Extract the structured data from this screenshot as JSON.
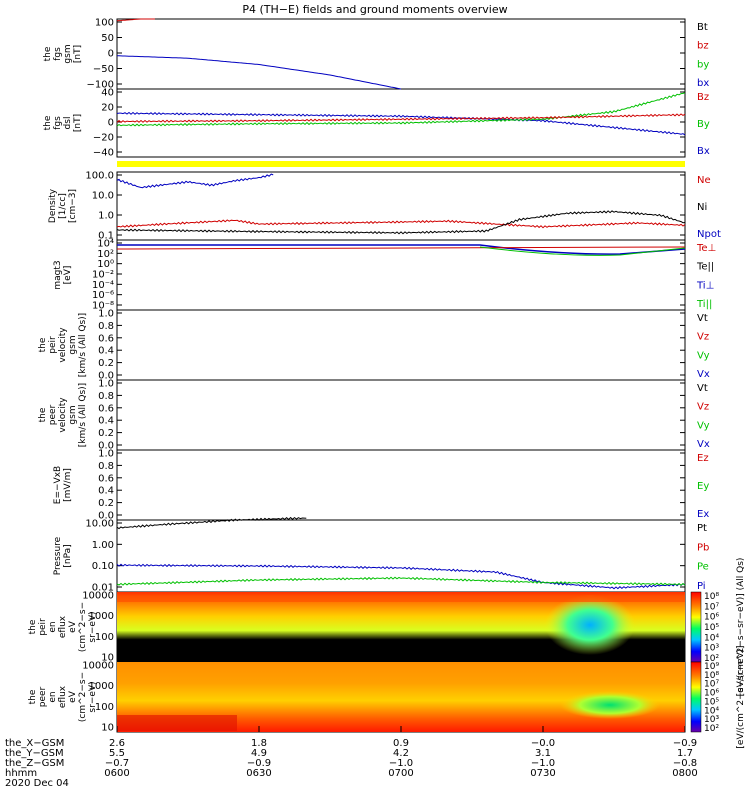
{
  "title": "P4 (TH−E) fields and ground moments overview",
  "panels": [
    {
      "id": "fgs_gsm",
      "ylabel": [
        "the",
        "fgs",
        "gsm",
        "[nT]"
      ],
      "ylim": [
        -100,
        100
      ],
      "scale": "linear",
      "ticks": [
        "100",
        "50",
        "0",
        "−50",
        "−100"
      ],
      "legend": [
        {
          "label": "Bt",
          "color": "#000000"
        },
        {
          "label": "bz",
          "color": "#d00000"
        },
        {
          "label": "by",
          "color": "#00c000"
        },
        {
          "label": "bx",
          "color": "#0000c0"
        }
      ]
    },
    {
      "id": "fgs_dsl",
      "ylabel": [
        "the",
        "fgs",
        "dsl",
        "[nT]"
      ],
      "ylim": [
        -50,
        40
      ],
      "scale": "linear",
      "ticks": [
        "40",
        "20",
        "0",
        "−20",
        "−40"
      ],
      "legend": [
        {
          "label": "Bz",
          "color": "#d00000"
        },
        {
          "label": "By",
          "color": "#00c000"
        },
        {
          "label": "Bx",
          "color": "#0000c0"
        }
      ]
    },
    {
      "id": "density",
      "ylabel": [
        "Density",
        "[1/cc]",
        "[cm−3]"
      ],
      "ylim": [
        0.05,
        200
      ],
      "scale": "log",
      "ticks": [
        "100.0",
        "10.0",
        "1.0",
        "0.1"
      ],
      "legend": [
        {
          "label": "Ne",
          "color": "#d00000"
        },
        {
          "label": "Ni",
          "color": "#000000"
        },
        {
          "label": "Npot",
          "color": "#0000c0"
        }
      ]
    },
    {
      "id": "temp",
      "ylabel": [
        "magt3",
        "[eV]"
      ],
      "scale": "log",
      "ticks": [
        "10⁴",
        "10²",
        "10⁰",
        "10⁻²",
        "10⁻⁴",
        "10⁻⁶",
        "10⁻⁸"
      ],
      "legend": [
        {
          "label": "Te⊥",
          "color": "#d00000"
        },
        {
          "label": "Te||",
          "color": "#000000"
        },
        {
          "label": "Ti⊥",
          "color": "#0000c0"
        },
        {
          "label": "Ti||",
          "color": "#00c000"
        }
      ]
    },
    {
      "id": "peir_vel",
      "ylabel": [
        "the",
        "peir",
        "velocity",
        "gsm",
        "[km/s (All Qs)]"
      ],
      "ylim": [
        0,
        1
      ],
      "scale": "linear",
      "ticks": [
        "1.0",
        "0.8",
        "0.6",
        "0.4",
        "0.2",
        "0.0"
      ],
      "legend": [
        {
          "label": "Vt",
          "color": "#000000"
        },
        {
          "label": "Vz",
          "color": "#d00000"
        },
        {
          "label": "Vy",
          "color": "#00c000"
        },
        {
          "label": "Vx",
          "color": "#0000c0"
        }
      ]
    },
    {
      "id": "peer_vel",
      "ylabel": [
        "the",
        "peer",
        "velocity",
        "gsm",
        "[km/s (All Qs)]"
      ],
      "ylim": [
        0,
        1
      ],
      "scale": "linear",
      "ticks": [
        "1.0",
        "0.8",
        "0.6",
        "0.4",
        "0.2",
        "0.0"
      ],
      "legend": [
        {
          "label": "Vt",
          "color": "#000000"
        },
        {
          "label": "Vz",
          "color": "#d00000"
        },
        {
          "label": "Vy",
          "color": "#00c000"
        },
        {
          "label": "Vx",
          "color": "#0000c0"
        }
      ]
    },
    {
      "id": "efield",
      "ylabel": [
        "E=−VxB",
        "[mV/m]"
      ],
      "ylim": [
        0,
        1
      ],
      "scale": "linear",
      "ticks": [
        "1.0",
        "0.8",
        "0.6",
        "0.4",
        "0.2",
        "0.0"
      ],
      "legend": [
        {
          "label": "Ez",
          "color": "#d00000"
        },
        {
          "label": "Ey",
          "color": "#00c000"
        },
        {
          "label": "Ex",
          "color": "#0000c0"
        }
      ]
    },
    {
      "id": "pressure",
      "ylabel": [
        "Pressure",
        "[nPa]"
      ],
      "ylim": [
        0.005,
        20
      ],
      "scale": "log",
      "ticks": [
        "10.00",
        "1.00",
        "0.10",
        "0.01"
      ],
      "legend": [
        {
          "label": "Pt",
          "color": "#000000"
        },
        {
          "label": "Pb",
          "color": "#d00000"
        },
        {
          "label": "Pe",
          "color": "#00c000"
        },
        {
          "label": "Pi",
          "color": "#0000c0"
        }
      ]
    },
    {
      "id": "peir_eflux",
      "ylabel": [
        "the",
        "peir",
        "en",
        "eflux",
        "eV",
        "(cm^2−s−",
        "sr−eV)"
      ],
      "ylim": [
        6,
        25000
      ],
      "scale": "log",
      "ticks": [
        "10000",
        "1000",
        "100",
        "10"
      ],
      "colorbar_ticks": [
        "10⁸",
        "10⁷",
        "10⁶",
        "10⁵",
        "10⁴",
        "10³",
        "10²"
      ],
      "colorbar_label": "[eV/(cm^2−s−sr−eV)] (All Qs)"
    },
    {
      "id": "peer_eflux",
      "ylabel": [
        "the",
        "peer",
        "en",
        "eflux",
        "eV",
        "(cm^2−s−",
        "sr−eV)"
      ],
      "ylim": [
        6,
        25000
      ],
      "scale": "log",
      "ticks": [
        "10000",
        "1000",
        "100",
        "10"
      ],
      "colorbar_ticks": [
        "10⁹",
        "10⁸",
        "10⁷",
        "10⁶",
        "10⁵",
        "10⁴",
        "10³",
        "10²"
      ],
      "colorbar_label": "[eV/(cm^2−s−sr−eV)]"
    }
  ],
  "xaxis": {
    "rows": [
      {
        "label": "the_X−GSM",
        "values": [
          "2.6",
          "1.8",
          "0.9",
          "−0.0",
          "−0.9"
        ]
      },
      {
        "label": "the_Y−GSM",
        "values": [
          "5.5",
          "4.9",
          "4.2",
          "3.1",
          "1.7"
        ]
      },
      {
        "label": "the_Z−GSM",
        "values": [
          "−0.7",
          "−0.9",
          "−1.0",
          "−1.0",
          "−0.8"
        ]
      },
      {
        "label": "hhmm",
        "values": [
          "0600",
          "0630",
          "0700",
          "0730",
          "0800"
        ]
      }
    ],
    "date": "2020 Dec 04"
  },
  "chart_data": {
    "type": "line",
    "title": "P4 (TH−E) fields and ground moments overview",
    "x_time_range": [
      "0600",
      "0800"
    ],
    "x_ticks": [
      "0600",
      "0630",
      "0700",
      "0730",
      "0800"
    ],
    "series": [
      {
        "panel": "fgs_gsm",
        "name": "bx",
        "x": [
          "0600",
          "0615",
          "0630",
          "0645",
          "0700"
        ],
        "y": [
          -5,
          -12,
          -30,
          -60,
          -100
        ]
      },
      {
        "panel": "fgs_gsm",
        "name": "bz",
        "x": [
          "0600",
          "0605",
          "0608"
        ],
        "y": [
          95,
          100,
          100
        ]
      },
      {
        "panel": "fgs_dsl",
        "name": "Bx",
        "x": [
          "0600",
          "0630",
          "0700",
          "0730",
          "0800"
        ],
        "y": [
          8,
          6,
          4,
          -2,
          -20
        ]
      },
      {
        "panel": "fgs_dsl",
        "name": "By",
        "x": [
          "0600",
          "0630",
          "0700",
          "0730",
          "0745",
          "0800"
        ],
        "y": [
          -8,
          -6,
          -5,
          0,
          10,
          35
        ]
      },
      {
        "panel": "fgs_dsl",
        "name": "Bz",
        "x": [
          "0600",
          "0630",
          "0700",
          "0730",
          "0800"
        ],
        "y": [
          -3,
          -2,
          0,
          2,
          6
        ]
      },
      {
        "panel": "density",
        "name": "Npot",
        "x": [
          "0600",
          "0605",
          "0615",
          "0620",
          "0625",
          "0630",
          "0633"
        ],
        "y": [
          80,
          30,
          60,
          40,
          70,
          100,
          150
        ]
      },
      {
        "panel": "density",
        "name": "Ne",
        "x": [
          "0600",
          "0610",
          "0625",
          "0630",
          "0700",
          "0710",
          "0720",
          "0730",
          "0750",
          "0800"
        ],
        "y": [
          0.25,
          0.35,
          0.55,
          0.35,
          0.45,
          0.5,
          0.35,
          0.25,
          0.4,
          0.3
        ]
      },
      {
        "panel": "density",
        "name": "Ni",
        "x": [
          "0600",
          "0630",
          "0700",
          "0718",
          "0725",
          "0735",
          "0745",
          "0755",
          "0800"
        ],
        "y": [
          0.17,
          0.14,
          0.12,
          0.15,
          0.6,
          1.3,
          1.6,
          1.0,
          0.4
        ]
      },
      {
        "panel": "pressure",
        "name": "Pt",
        "x": [
          "0600",
          "0610",
          "0625",
          "0640"
        ],
        "y": [
          8,
          12,
          20,
          25
        ]
      },
      {
        "panel": "pressure",
        "name": "Pi",
        "x": [
          "0600",
          "0630",
          "0700",
          "0720",
          "0730",
          "0745",
          "0800"
        ],
        "y": [
          0.11,
          0.1,
          0.08,
          0.05,
          0.015,
          0.008,
          0.012
        ]
      },
      {
        "panel": "pressure",
        "name": "Pe",
        "x": [
          "0600",
          "0630",
          "0700",
          "0730",
          "0800"
        ],
        "y": [
          0.012,
          0.02,
          0.025,
          0.015,
          0.012
        ]
      }
    ]
  }
}
